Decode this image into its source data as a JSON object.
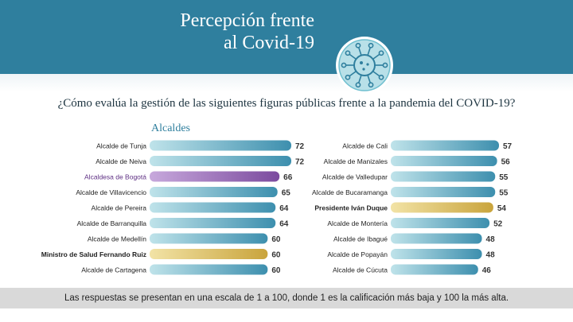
{
  "header": {
    "title_line1": "Percepción frente",
    "title_line2": "al Covid-19",
    "virus_icon": "virus-icon"
  },
  "question": "¿Cómo evalúa la gestión de las siguientes figuras públicas frente a la pandemia del COVID-19?",
  "section_label": "Alcaldes",
  "footer_note": "Las respuestas se presentan en una escala de 1 a 100, donde 1 es la calificación más baja y 100 la más alta.",
  "colors": {
    "header": "#2f7f9e",
    "bar_default": "#3d8fae",
    "bar_bogota": "#7b4a9e",
    "bar_highlight": "#c9a43c",
    "bogota_label": "#5e2f83"
  },
  "chart_data": [
    {
      "type": "bar",
      "orientation": "horizontal",
      "categories": [
        "Alcalde de Tunja",
        "Alcalde de Neiva",
        "Alcaldesa de Bogotá",
        "Alcalde de Villavicencio",
        "Alcalde de Pereira",
        "Alcalde de Barranquilla",
        "Alcalde de Medellín",
        "Ministro de Salud Fernando Ruiz",
        "Alcalde de Cartagena"
      ],
      "values": [
        72,
        72,
        66,
        65,
        64,
        64,
        60,
        60,
        60
      ],
      "highlight": [
        "default",
        "default",
        "purple",
        "default",
        "default",
        "default",
        "default",
        "gold",
        "default"
      ]
    },
    {
      "type": "bar",
      "orientation": "horizontal",
      "categories": [
        "Alcalde de Cali",
        "Alcalde de Manizales",
        "Alcalde de Valledupar",
        "Alcalde de Bucaramanga",
        "Presidente Iván Duque",
        "Alcalde de Montería",
        "Alcalde de Ibagué",
        "Alcalde de Popayán",
        "Alcalde de Cúcuta"
      ],
      "values": [
        57,
        56,
        55,
        55,
        54,
        52,
        48,
        48,
        46
      ],
      "highlight": [
        "default",
        "default",
        "default",
        "default",
        "gold",
        "default",
        "default",
        "default",
        "default"
      ]
    }
  ]
}
